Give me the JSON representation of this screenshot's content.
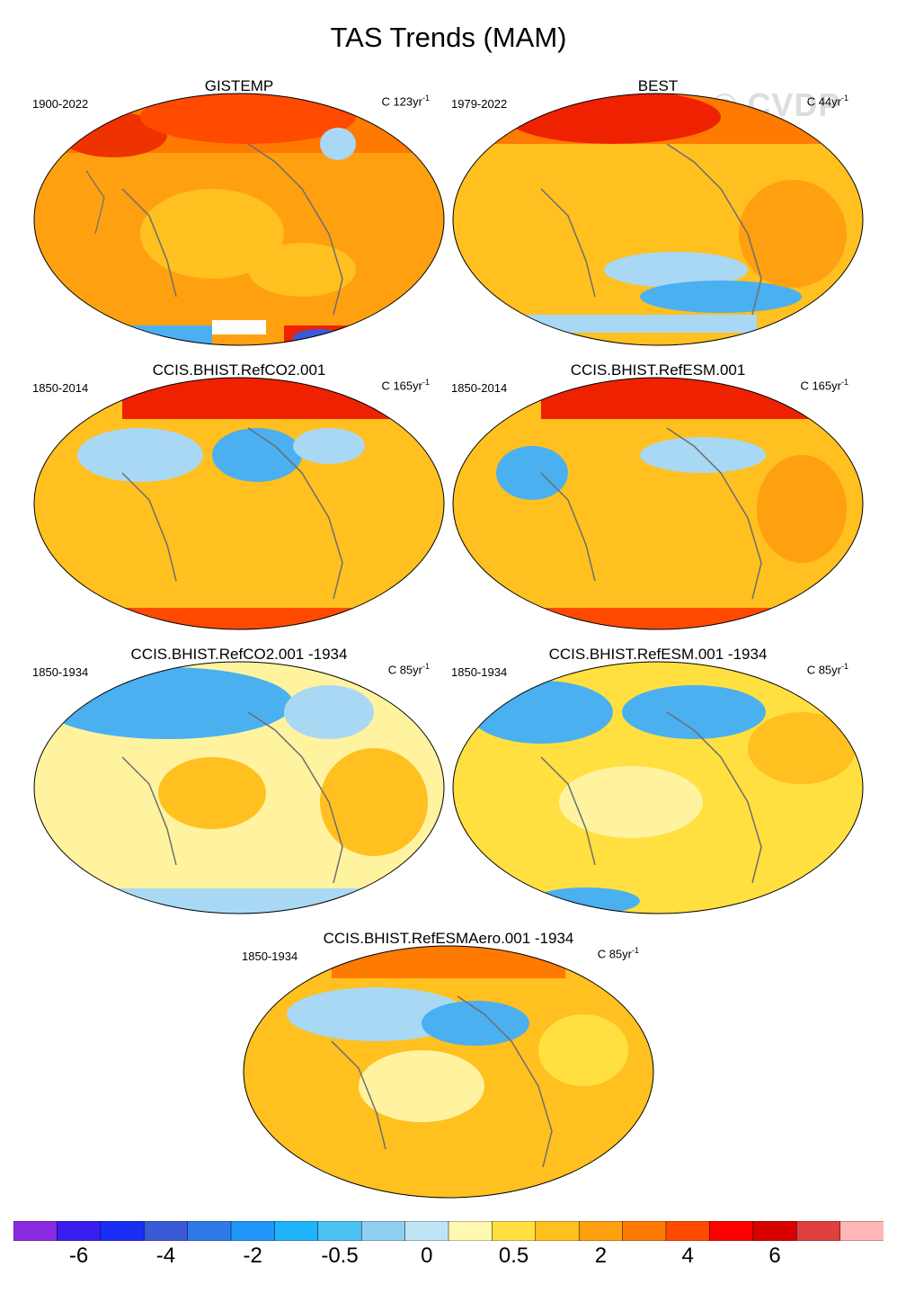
{
  "title": "TAS Trends (MAM)",
  "watermark": "© CVDP",
  "panels": [
    {
      "title": "GISTEMP",
      "period": "1900-2022",
      "units": "C 123yr",
      "units_sup": "-1"
    },
    {
      "title": "BEST",
      "period": "1979-2022",
      "units": "C 44yr",
      "units_sup": "-1"
    },
    {
      "title": "CCIS.BHIST.RefCO2.001",
      "period": "1850-2014",
      "units": "C 165yr",
      "units_sup": "-1"
    },
    {
      "title": "CCIS.BHIST.RefESM.001",
      "period": "1850-2014",
      "units": "C 165yr",
      "units_sup": "-1"
    },
    {
      "title": "CCIS.BHIST.RefCO2.001 -1934",
      "period": "1850-1934",
      "units": "C 85yr",
      "units_sup": "-1"
    },
    {
      "title": "CCIS.BHIST.RefESM.001 -1934",
      "period": "1850-1934",
      "units": "C 85yr",
      "units_sup": "-1"
    },
    {
      "title": "CCIS.BHIST.RefESMAero.001 -1934",
      "period": "1850-1934",
      "units": "C 85yr",
      "units_sup": "-1"
    }
  ],
  "colorbar": {
    "colors": [
      "#8a2be2",
      "#3a1ef0",
      "#1a2ef5",
      "#3a5ad8",
      "#2f7ae8",
      "#2096f8",
      "#1fb4fa",
      "#4ac2f2",
      "#8fd0f0",
      "#bfe4f6",
      "#fff8b0",
      "#ffe040",
      "#ffc020",
      "#ffa010",
      "#ff7a00",
      "#ff4a00",
      "#ff0000",
      "#d80000",
      "#e04040",
      "#ffb6b6"
    ],
    "labels": [
      "-6",
      "-4",
      "-2",
      "-0.5",
      "0",
      "0.5",
      "2",
      "4",
      "6"
    ]
  },
  "map_colors": {
    "base_warm": "#ffc020",
    "warm": "#ffa010",
    "hot": "#ff4a00",
    "very_hot": "#ee2200",
    "neutral": "#fff3a0",
    "cool": "#a8d8f4",
    "cold": "#4ab0f0",
    "coast": "#6e6e6e"
  }
}
